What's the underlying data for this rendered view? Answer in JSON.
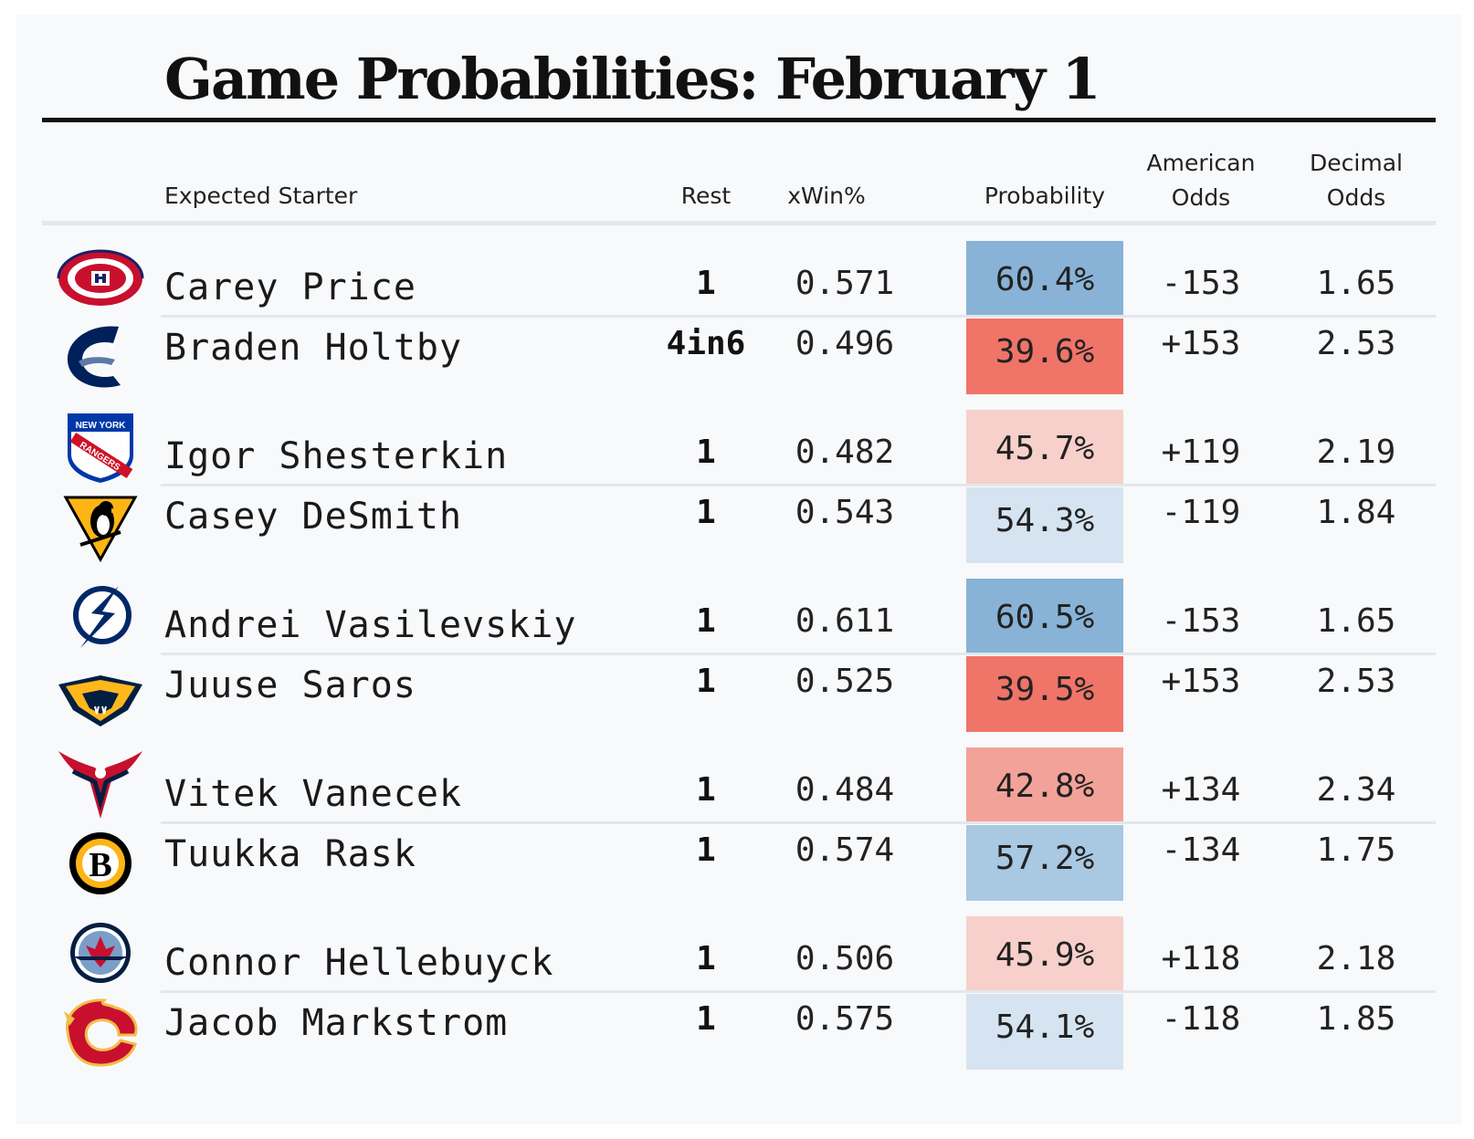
{
  "title": "Game Probabilities: February 1",
  "headers": {
    "starter": "Expected Starter",
    "rest": "Rest",
    "xwin": "xWin%",
    "probability": "Probability",
    "american_1": "American",
    "american_2": "Odds",
    "decimal_1": "Decimal",
    "decimal_2": "Odds"
  },
  "colors": {
    "strong_blue": "#88b3d6",
    "light_blue": "#d5e4f0",
    "mid_blue": "#a9c8e2",
    "strong_red": "#f07468",
    "light_red": "#f8d0cb",
    "mid_red": "#f3a29a"
  },
  "games": [
    {
      "rows": [
        {
          "team_icon": "canadiens-logo-icon",
          "name": "Carey Price",
          "rest": "1",
          "xwin": "0.571",
          "probability": "60.4%",
          "prob_color": "#88b3d6",
          "american": "-153",
          "decimal": "1.65"
        },
        {
          "team_icon": "canucks-logo-icon",
          "name": "Braden Holtby",
          "rest": "4in6",
          "xwin": "0.496",
          "probability": "39.6%",
          "prob_color": "#f07468",
          "american": "+153",
          "decimal": "2.53"
        }
      ]
    },
    {
      "rows": [
        {
          "team_icon": "rangers-logo-icon",
          "name": "Igor Shesterkin",
          "rest": "1",
          "xwin": "0.482",
          "probability": "45.7%",
          "prob_color": "#f8d0cb",
          "american": "+119",
          "decimal": "2.19"
        },
        {
          "team_icon": "penguins-logo-icon",
          "name": "Casey DeSmith",
          "rest": "1",
          "xwin": "0.543",
          "probability": "54.3%",
          "prob_color": "#d5e4f0",
          "american": "-119",
          "decimal": "1.84"
        }
      ]
    },
    {
      "rows": [
        {
          "team_icon": "lightning-logo-icon",
          "name": "Andrei Vasilevskiy",
          "rest": "1",
          "xwin": "0.611",
          "probability": "60.5%",
          "prob_color": "#88b3d6",
          "american": "-153",
          "decimal": "1.65"
        },
        {
          "team_icon": "predators-logo-icon",
          "name": "Juuse Saros",
          "rest": "1",
          "xwin": "0.525",
          "probability": "39.5%",
          "prob_color": "#f07468",
          "american": "+153",
          "decimal": "2.53"
        }
      ]
    },
    {
      "rows": [
        {
          "team_icon": "capitals-logo-icon",
          "name": "Vitek Vanecek",
          "rest": "1",
          "xwin": "0.484",
          "probability": "42.8%",
          "prob_color": "#f3a29a",
          "american": "+134",
          "decimal": "2.34"
        },
        {
          "team_icon": "bruins-logo-icon",
          "name": "Tuukka Rask",
          "rest": "1",
          "xwin": "0.574",
          "probability": "57.2%",
          "prob_color": "#a9c8e2",
          "american": "-134",
          "decimal": "1.75"
        }
      ]
    },
    {
      "rows": [
        {
          "team_icon": "jets-logo-icon",
          "name": "Connor Hellebuyck",
          "rest": "1",
          "xwin": "0.506",
          "probability": "45.9%",
          "prob_color": "#f8d0cb",
          "american": "+118",
          "decimal": "2.18"
        },
        {
          "team_icon": "flames-logo-icon",
          "name": "Jacob Markstrom",
          "rest": "1",
          "xwin": "0.575",
          "probability": "54.1%",
          "prob_color": "#d5e4f0",
          "american": "-118",
          "decimal": "1.85"
        }
      ]
    }
  ],
  "chart_data": {
    "type": "table",
    "title": "Game Probabilities: February 1",
    "columns": [
      "Expected Starter",
      "Rest",
      "xWin%",
      "Probability",
      "American Odds",
      "Decimal Odds"
    ],
    "rows": [
      [
        "Carey Price",
        "1",
        0.571,
        60.4,
        -153,
        1.65
      ],
      [
        "Braden Holtby",
        "4in6",
        0.496,
        39.6,
        153,
        2.53
      ],
      [
        "Igor Shesterkin",
        "1",
        0.482,
        45.7,
        119,
        2.19
      ],
      [
        "Casey DeSmith",
        "1",
        0.543,
        54.3,
        -119,
        1.84
      ],
      [
        "Andrei Vasilevskiy",
        "1",
        0.611,
        60.5,
        -153,
        1.65
      ],
      [
        "Juuse Saros",
        "1",
        0.525,
        39.5,
        153,
        2.53
      ],
      [
        "Vitek Vanecek",
        "1",
        0.484,
        42.8,
        134,
        2.34
      ],
      [
        "Tuukka Rask",
        "1",
        0.574,
        57.2,
        -134,
        1.75
      ],
      [
        "Connor Hellebuyck",
        "1",
        0.506,
        45.9,
        118,
        2.18
      ],
      [
        "Jacob Markstrom",
        "1",
        0.575,
        54.1,
        -118,
        1.85
      ]
    ]
  }
}
